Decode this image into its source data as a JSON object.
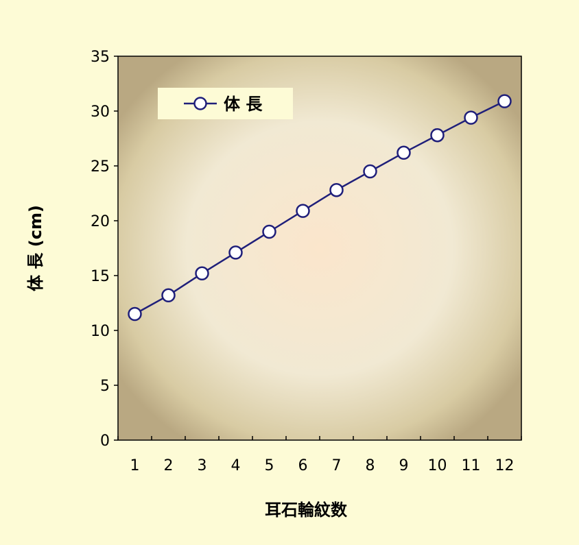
{
  "chart_data": {
    "type": "line",
    "title": "",
    "xlabel": "耳石輪紋数",
    "ylabel": "体 長 (cm)",
    "ylim": [
      0,
      35
    ],
    "yticks": [
      0,
      5,
      10,
      15,
      20,
      25,
      30,
      35
    ],
    "categories": [
      "1",
      "2",
      "3",
      "4",
      "5",
      "6",
      "7",
      "8",
      "9",
      "10",
      "11",
      "12"
    ],
    "series": [
      {
        "name": "体 長",
        "values": [
          11.5,
          13.2,
          15.2,
          17.1,
          19.0,
          20.9,
          22.8,
          24.5,
          26.2,
          27.8,
          29.4,
          30.9
        ],
        "color": "#1f1f7a",
        "marker": "open-circle"
      }
    ],
    "legend": "top-left",
    "grid": false
  }
}
